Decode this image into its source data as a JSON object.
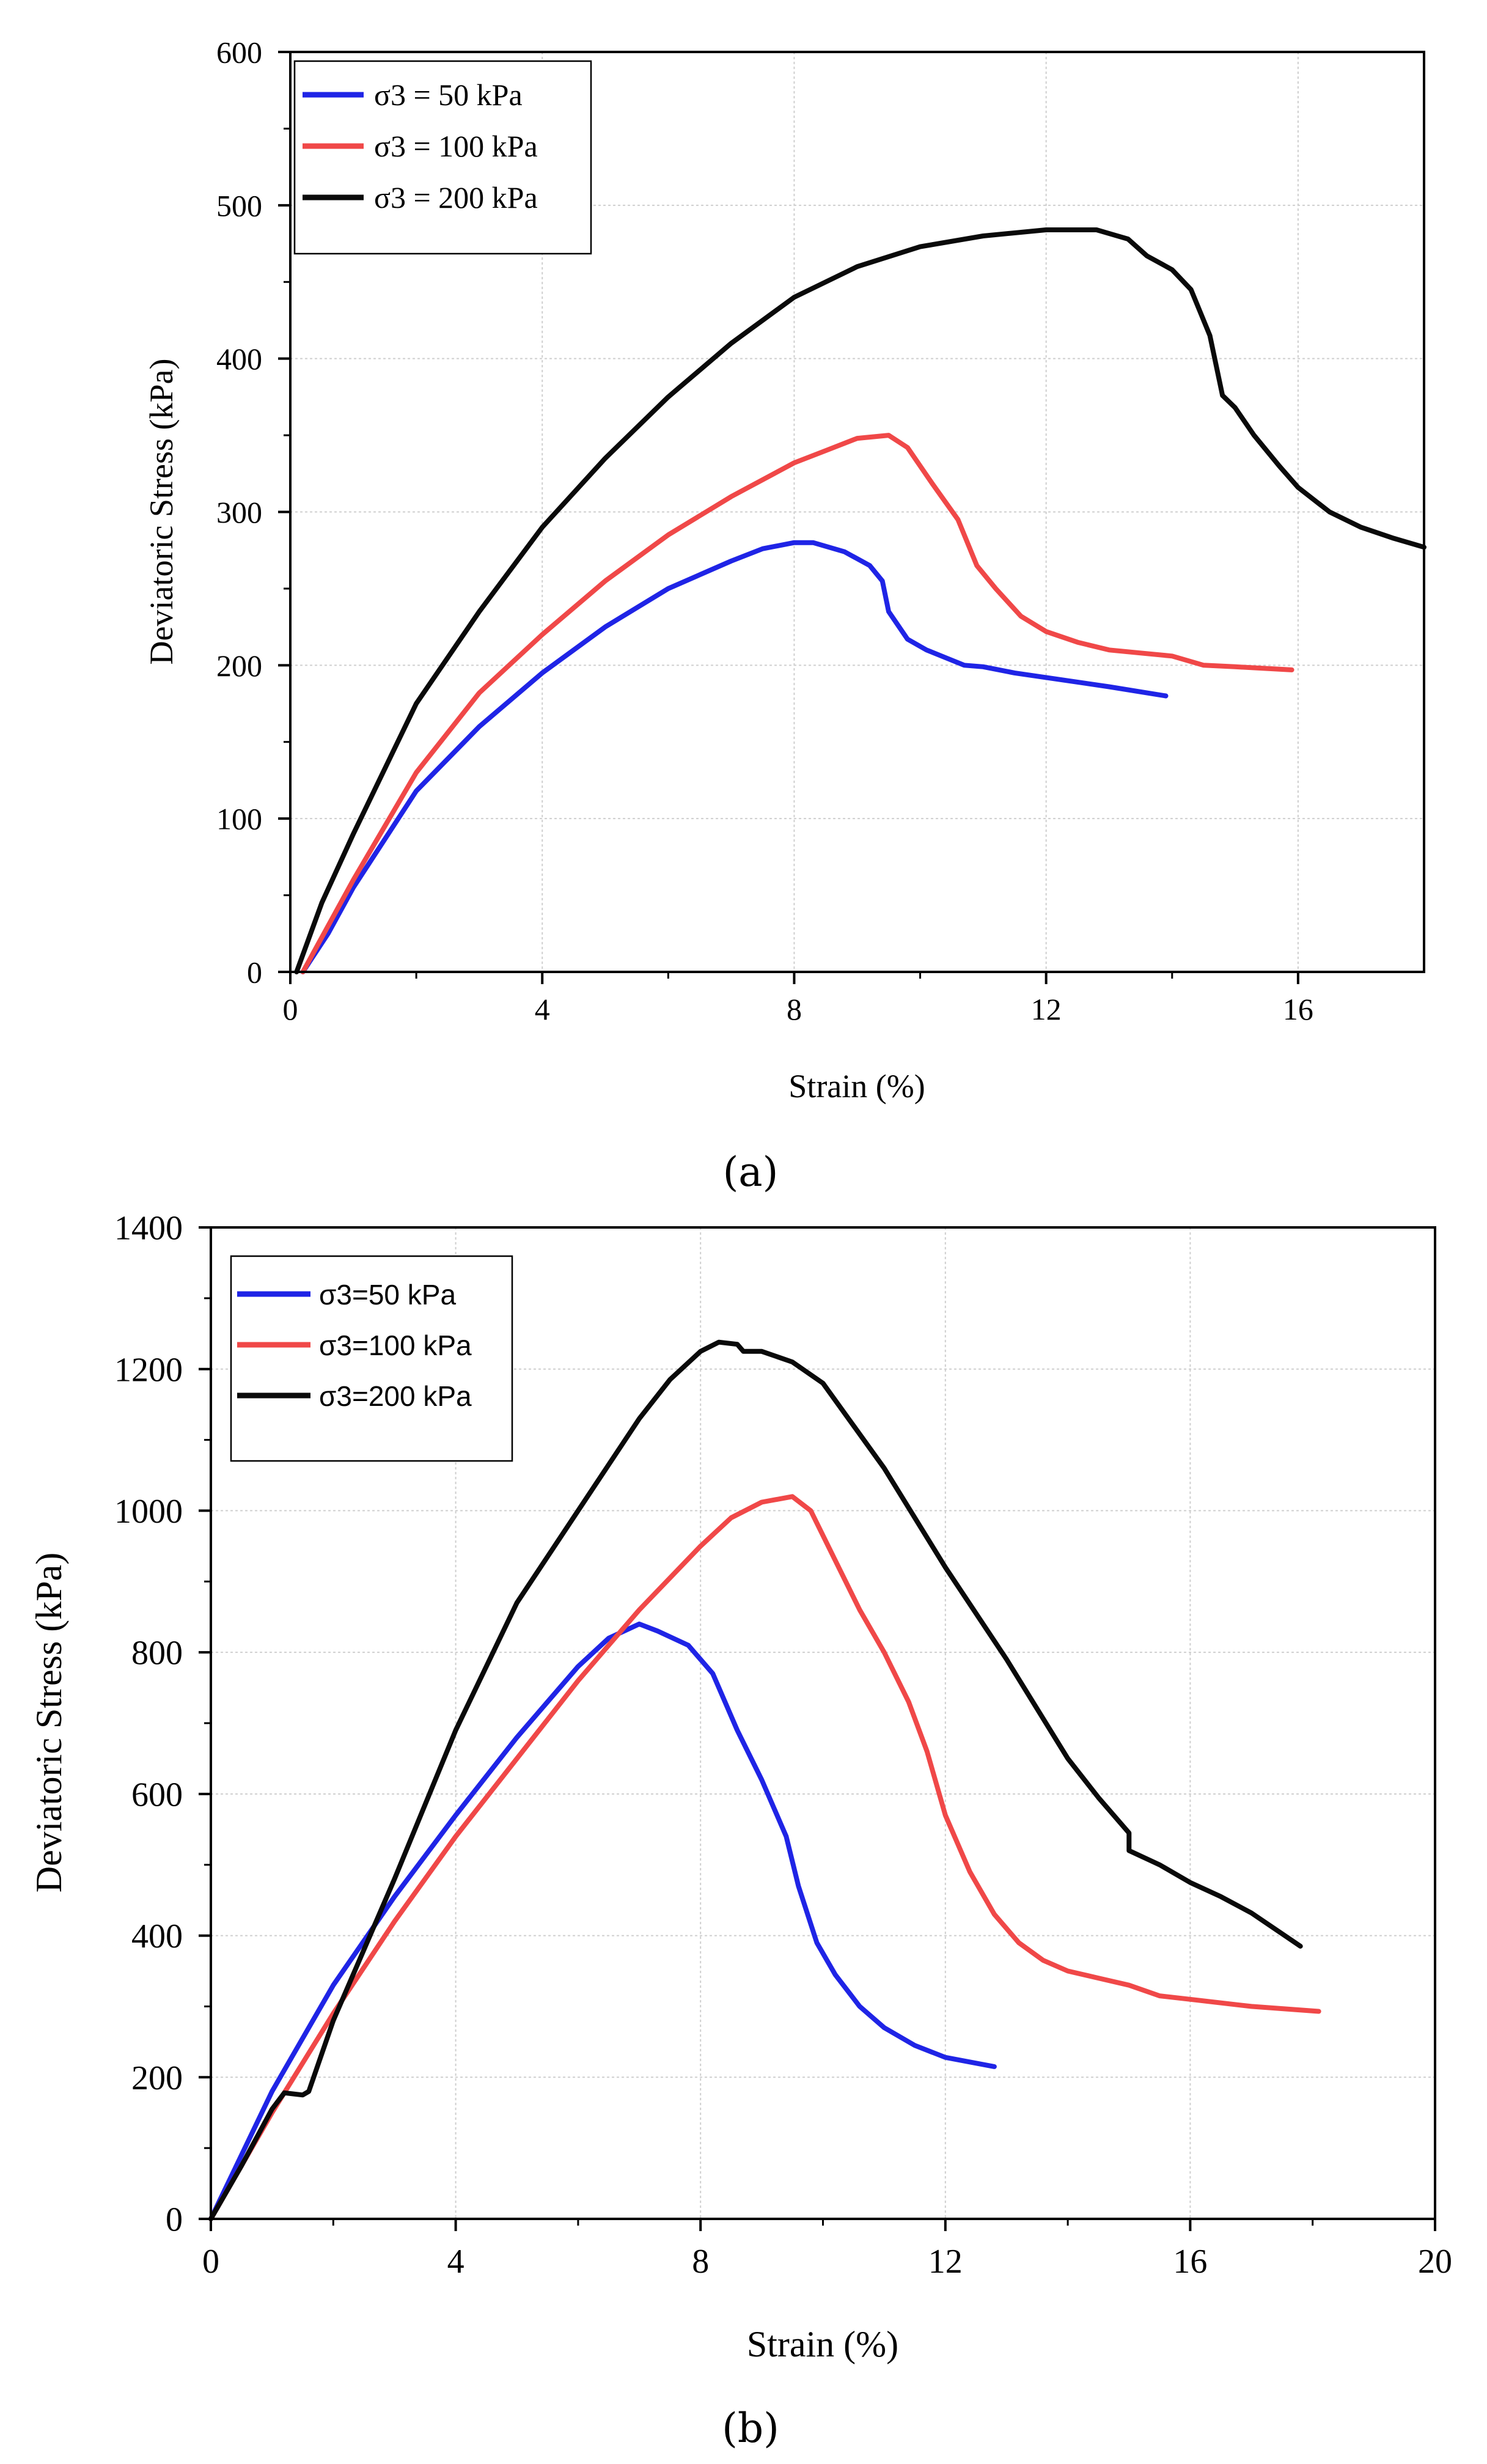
{
  "chart_data": [
    {
      "type": "line",
      "panel": "(a)",
      "title": "",
      "xlabel": "Strain (%)",
      "ylabel": "Deviatoric Stress (kPa)",
      "xlim": [
        0,
        18
      ],
      "ylim": [
        0,
        600
      ],
      "xticks": [
        0,
        4,
        8,
        12,
        16
      ],
      "yticks": [
        0,
        100,
        200,
        300,
        400,
        500,
        600
      ],
      "x_tick_labels": [
        "0",
        "4",
        "8",
        "12",
        "16"
      ],
      "y_tick_labels": [
        "0",
        "100",
        "200",
        "300",
        "400",
        "500",
        "600"
      ],
      "grid": true,
      "legend_position": "top-left",
      "series": [
        {
          "name": "σ3 = 50 kPa",
          "color": "#1f24e6",
          "points": [
            [
              0.2,
              0
            ],
            [
              0.6,
              25
            ],
            [
              1,
              55
            ],
            [
              2,
              118
            ],
            [
              3,
              160
            ],
            [
              4,
              195
            ],
            [
              5,
              225
            ],
            [
              6,
              250
            ],
            [
              7,
              268
            ],
            [
              7.5,
              276
            ],
            [
              8,
              280
            ],
            [
              8.3,
              280
            ],
            [
              8.8,
              274
            ],
            [
              9.2,
              265
            ],
            [
              9.4,
              255
            ],
            [
              9.5,
              235
            ],
            [
              9.8,
              217
            ],
            [
              10.1,
              210
            ],
            [
              10.4,
              205
            ],
            [
              10.7,
              200
            ],
            [
              11,
              199
            ],
            [
              11.5,
              195
            ],
            [
              12,
              192
            ],
            [
              13,
              186
            ],
            [
              13.9,
              180
            ]
          ]
        },
        {
          "name": "σ3 = 100 kPa",
          "color": "#f04848",
          "points": [
            [
              0.2,
              0
            ],
            [
              0.6,
              30
            ],
            [
              1,
              60
            ],
            [
              2,
              130
            ],
            [
              3,
              182
            ],
            [
              4,
              220
            ],
            [
              5,
              255
            ],
            [
              6,
              285
            ],
            [
              7,
              310
            ],
            [
              8,
              332
            ],
            [
              8.5,
              340
            ],
            [
              9,
              348
            ],
            [
              9.5,
              350
            ],
            [
              9.8,
              342
            ],
            [
              10.2,
              318
            ],
            [
              10.6,
              295
            ],
            [
              10.9,
              265
            ],
            [
              11.2,
              250
            ],
            [
              11.6,
              232
            ],
            [
              12,
              222
            ],
            [
              12.5,
              215
            ],
            [
              13,
              210
            ],
            [
              13.5,
              208
            ],
            [
              14,
              206
            ],
            [
              14.5,
              200
            ],
            [
              15,
              199
            ],
            [
              15.9,
              197
            ]
          ]
        },
        {
          "name": "σ3 = 200 kPa",
          "color": "#0a0a0a",
          "points": [
            [
              0.1,
              0
            ],
            [
              0.5,
              45
            ],
            [
              1,
              90
            ],
            [
              2,
              175
            ],
            [
              3,
              235
            ],
            [
              4,
              290
            ],
            [
              5,
              335
            ],
            [
              6,
              375
            ],
            [
              7,
              410
            ],
            [
              8,
              440
            ],
            [
              9,
              460
            ],
            [
              10,
              473
            ],
            [
              11,
              480
            ],
            [
              12,
              484
            ],
            [
              12.8,
              484
            ],
            [
              13.3,
              478
            ],
            [
              13.6,
              467
            ],
            [
              14,
              458
            ],
            [
              14.3,
              445
            ],
            [
              14.6,
              415
            ],
            [
              14.8,
              376
            ],
            [
              15,
              368
            ],
            [
              15.3,
              350
            ],
            [
              15.7,
              330
            ],
            [
              16,
              316
            ],
            [
              16.5,
              300
            ],
            [
              17,
              290
            ],
            [
              17.5,
              283
            ],
            [
              18,
              277
            ]
          ]
        }
      ]
    },
    {
      "type": "line",
      "panel": "(b)",
      "title": "",
      "xlabel": "Strain (%)",
      "ylabel": "Deviatoric Stress (kPa)",
      "xlim": [
        0,
        20
      ],
      "ylim": [
        0,
        1400
      ],
      "xticks": [
        0,
        4,
        8,
        12,
        16,
        20
      ],
      "yticks": [
        0,
        200,
        400,
        600,
        800,
        1000,
        1200,
        1400
      ],
      "x_tick_labels": [
        "0",
        "4",
        "8",
        "12",
        "16",
        "20"
      ],
      "y_tick_labels": [
        "0",
        "200",
        "400",
        "600",
        "800",
        "1000",
        "1200",
        "1400"
      ],
      "grid": true,
      "legend_position": "top-left",
      "series": [
        {
          "name": "σ3=50 kPa",
          "color": "#1f24e6",
          "points": [
            [
              0,
              0
            ],
            [
              1,
              180
            ],
            [
              2,
              330
            ],
            [
              3,
              455
            ],
            [
              4,
              570
            ],
            [
              5,
              680
            ],
            [
              6,
              780
            ],
            [
              6.5,
              820
            ],
            [
              7,
              840
            ],
            [
              7.3,
              830
            ],
            [
              7.8,
              810
            ],
            [
              8.2,
              770
            ],
            [
              8.6,
              690
            ],
            [
              9,
              620
            ],
            [
              9.4,
              540
            ],
            [
              9.6,
              470
            ],
            [
              9.9,
              390
            ],
            [
              10.2,
              345
            ],
            [
              10.6,
              300
            ],
            [
              11,
              270
            ],
            [
              11.5,
              245
            ],
            [
              12,
              228
            ],
            [
              12.8,
              215
            ]
          ]
        },
        {
          "name": "σ3=100 kPa",
          "color": "#f04848",
          "points": [
            [
              0,
              0
            ],
            [
              1,
              150
            ],
            [
              2,
              290
            ],
            [
              3,
              420
            ],
            [
              4,
              540
            ],
            [
              5,
              650
            ],
            [
              6,
              760
            ],
            [
              7,
              860
            ],
            [
              8,
              950
            ],
            [
              8.5,
              990
            ],
            [
              9,
              1012
            ],
            [
              9.5,
              1020
            ],
            [
              9.8,
              1000
            ],
            [
              10.2,
              930
            ],
            [
              10.6,
              860
            ],
            [
              11,
              800
            ],
            [
              11.4,
              730
            ],
            [
              11.7,
              660
            ],
            [
              12,
              570
            ],
            [
              12.4,
              490
            ],
            [
              12.8,
              430
            ],
            [
              13.2,
              390
            ],
            [
              13.6,
              365
            ],
            [
              14,
              350
            ],
            [
              14.5,
              340
            ],
            [
              15,
              330
            ],
            [
              15.5,
              315
            ],
            [
              16,
              310
            ],
            [
              17,
              300
            ],
            [
              18.1,
              293
            ]
          ]
        },
        {
          "name": "σ3=200 kPa",
          "color": "#0a0a0a",
          "points": [
            [
              0,
              0
            ],
            [
              0.5,
              75
            ],
            [
              1,
              155
            ],
            [
              1.2,
              178
            ],
            [
              1.5,
              175
            ],
            [
              1.6,
              180
            ],
            [
              2,
              280
            ],
            [
              3,
              480
            ],
            [
              4,
              690
            ],
            [
              5,
              870
            ],
            [
              6,
              1000
            ],
            [
              7,
              1130
            ],
            [
              7.5,
              1185
            ],
            [
              8,
              1225
            ],
            [
              8.3,
              1238
            ],
            [
              8.6,
              1235
            ],
            [
              8.7,
              1225
            ],
            [
              9,
              1225
            ],
            [
              9.5,
              1210
            ],
            [
              10,
              1180
            ],
            [
              10.5,
              1120
            ],
            [
              11,
              1060
            ],
            [
              12,
              920
            ],
            [
              13,
              790
            ],
            [
              14,
              650
            ],
            [
              14.5,
              595
            ],
            [
              15,
              545
            ],
            [
              15,
              520
            ],
            [
              15.5,
              500
            ],
            [
              16,
              475
            ],
            [
              16.5,
              455
            ],
            [
              17,
              432
            ],
            [
              17.8,
              385
            ]
          ]
        }
      ]
    }
  ]
}
